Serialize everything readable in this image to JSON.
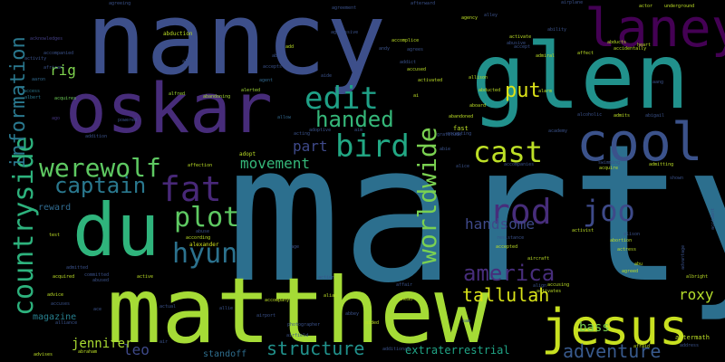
{
  "words": [
    {
      "text": "nancy",
      "color": "#3d4f8a"
    },
    {
      "text": "marty",
      "color": "#2c6f8e"
    },
    {
      "text": "matthew",
      "color": "#a5db36"
    },
    {
      "text": "oskar",
      "color": "#472c7a"
    },
    {
      "text": "glen",
      "color": "#21918c"
    },
    {
      "text": "du",
      "color": "#2fb47c"
    },
    {
      "text": "cool",
      "color": "#3b528b"
    },
    {
      "text": "laney",
      "color": "#440154"
    },
    {
      "text": "jesus",
      "color": "#c8e020"
    },
    {
      "text": "countryside",
      "color": "#2db27d"
    },
    {
      "text": "worldwide",
      "color": "#7ad151"
    },
    {
      "text": "information",
      "color": "#2a788e"
    },
    {
      "text": "werewolf",
      "color": "#5ec962"
    },
    {
      "text": "bird",
      "color": "#22a884"
    },
    {
      "text": "edit",
      "color": "#1fa187"
    },
    {
      "text": "cast",
      "color": "#bddf26"
    },
    {
      "text": "fat",
      "color": "#482878"
    },
    {
      "text": "rod",
      "color": "#472d7b"
    },
    {
      "text": "joo",
      "color": "#3e4a89"
    },
    {
      "text": "hyun",
      "color": "#2c728e"
    },
    {
      "text": "plot",
      "color": "#5ec962"
    },
    {
      "text": "handed",
      "color": "#35b779"
    },
    {
      "text": "captain",
      "color": "#2a788e"
    },
    {
      "text": "america",
      "color": "#472d7b"
    },
    {
      "text": "tallulah",
      "color": "#d8e219"
    },
    {
      "text": "structure",
      "color": "#21918c"
    },
    {
      "text": "adventure",
      "color": "#38598c"
    },
    {
      "text": "put",
      "color": "#dde318"
    },
    {
      "text": "movement",
      "color": "#35b779"
    },
    {
      "text": "handsome",
      "color": "#3e4989"
    },
    {
      "text": "leo",
      "color": "#3e4989"
    },
    {
      "text": "rig",
      "color": "#7fd34e"
    },
    {
      "text": "part",
      "color": "#3e4989"
    },
    {
      "text": "roxy",
      "color": "#b5de2b"
    },
    {
      "text": "jennifer",
      "color": "#aadc32"
    },
    {
      "text": "bass",
      "color": "#7ad151"
    },
    {
      "text": "magazine",
      "color": "#277f8e"
    },
    {
      "text": "extraterrestrial",
      "color": "#20a486"
    },
    {
      "text": "reward",
      "color": "#306a8e"
    },
    {
      "text": "standoff",
      "color": "#2e6e8e"
    },
    {
      "text": "alexander",
      "color": "#d0e11c"
    },
    {
      "text": "adopt",
      "color": "#bddf26"
    },
    {
      "text": "abduction",
      "color": "#bddf26"
    },
    {
      "text": "aftermath",
      "color": "#bddf26"
    },
    {
      "text": "acknowledges",
      "color": "#433e85"
    },
    {
      "text": "accompanied",
      "color": "#3b528b"
    },
    {
      "text": "activity",
      "color": "#3b528b"
    },
    {
      "text": "african",
      "color": "#3b528b"
    },
    {
      "text": "aaron",
      "color": "#31688e"
    },
    {
      "text": "access",
      "color": "#2a788e"
    },
    {
      "text": "albert",
      "color": "#2a788e"
    },
    {
      "text": "acquires",
      "color": "#6ece58"
    },
    {
      "text": "ago",
      "color": "#453581"
    },
    {
      "text": "addition",
      "color": "#3b528b"
    },
    {
      "text": "powered",
      "color": "#3b528b"
    },
    {
      "text": "alien",
      "color": "#3b528b"
    },
    {
      "text": "alfred",
      "color": "#a5db36"
    },
    {
      "text": "abandoning",
      "color": "#a5db36"
    },
    {
      "text": "alerted",
      "color": "#a5db36"
    },
    {
      "text": "agent",
      "color": "#31688e"
    },
    {
      "text": "allow",
      "color": "#31688e"
    },
    {
      "text": "acting",
      "color": "#3b528b"
    },
    {
      "text": "adoptive",
      "color": "#3b528b"
    },
    {
      "text": "aim",
      "color": "#3b528b"
    },
    {
      "text": "affection",
      "color": "#bddf26"
    },
    {
      "text": "abuse",
      "color": "#3b528b"
    },
    {
      "text": "according",
      "color": "#bddf26"
    },
    {
      "text": "test",
      "color": "#bddf26"
    },
    {
      "text": "admitted",
      "color": "#3b528b"
    },
    {
      "text": "acquired",
      "color": "#bddf26"
    },
    {
      "text": "committed",
      "color": "#3b528b"
    },
    {
      "text": "abused",
      "color": "#3b528b"
    },
    {
      "text": "active",
      "color": "#bddf26"
    },
    {
      "text": "advice",
      "color": "#bddf26"
    },
    {
      "text": "accuses",
      "color": "#3b528b"
    },
    {
      "text": "alliance",
      "color": "#3b528b"
    },
    {
      "text": "abraham",
      "color": "#bddf26"
    },
    {
      "text": "advises",
      "color": "#bddf26"
    },
    {
      "text": "air",
      "color": "#3b528b"
    },
    {
      "text": "accompany",
      "color": "#bddf26"
    },
    {
      "text": "action",
      "color": "#3b528b"
    },
    {
      "text": "alias",
      "color": "#bddf26"
    },
    {
      "text": "airport",
      "color": "#3b528b"
    },
    {
      "text": "airfield",
      "color": "#3b528b"
    },
    {
      "text": "photographer",
      "color": "#3b528b"
    },
    {
      "text": "aided",
      "color": "#bddf26"
    },
    {
      "text": "additional",
      "color": "#3b528b"
    },
    {
      "text": "ahead",
      "color": "#bddf26"
    },
    {
      "text": "affair",
      "color": "#3b528b"
    },
    {
      "text": "accepted",
      "color": "#bddf26"
    },
    {
      "text": "aircraft",
      "color": "#bddf26"
    },
    {
      "text": "align",
      "color": "#3b528b"
    },
    {
      "text": "accusing",
      "color": "#bddf26"
    },
    {
      "text": "activates",
      "color": "#bddf26"
    },
    {
      "text": "resistance",
      "color": "#3b528b"
    },
    {
      "text": "activist",
      "color": "#bddf26"
    },
    {
      "text": "alison",
      "color": "#3b528b"
    },
    {
      "text": "abortion",
      "color": "#bddf26"
    },
    {
      "text": "actress",
      "color": "#bddf26"
    },
    {
      "text": "agreed",
      "color": "#bddf26"
    },
    {
      "text": "albright",
      "color": "#bddf26"
    },
    {
      "text": "advantage",
      "color": "#3b528b"
    },
    {
      "text": "accident",
      "color": "#3b528b"
    },
    {
      "text": "afraid",
      "color": "#bddf26"
    },
    {
      "text": "address",
      "color": "#3b528b"
    },
    {
      "text": "admitting",
      "color": "#bddf26"
    },
    {
      "text": "swimming",
      "color": "#3b528b"
    },
    {
      "text": "acquire",
      "color": "#bddf26"
    },
    {
      "text": "shown",
      "color": "#3b528b"
    },
    {
      "text": "admits",
      "color": "#bddf26"
    },
    {
      "text": "abigail",
      "color": "#3b528b"
    },
    {
      "text": "alcoholic",
      "color": "#3b528b"
    },
    {
      "text": "academy",
      "color": "#3b528b"
    },
    {
      "text": "abandoned",
      "color": "#bddf26"
    },
    {
      "text": "aboard",
      "color": "#bddf26"
    },
    {
      "text": "accepting",
      "color": "#3b528b"
    },
    {
      "text": "fast",
      "color": "#bddf26"
    },
    {
      "text": "gratitude",
      "color": "#3b528b"
    },
    {
      "text": "abie",
      "color": "#3b528b"
    },
    {
      "text": "alice",
      "color": "#3b528b"
    },
    {
      "text": "accompanies",
      "color": "#3b528b"
    },
    {
      "text": "abducted",
      "color": "#bddf26"
    },
    {
      "text": "allison",
      "color": "#bddf26"
    },
    {
      "text": "activated",
      "color": "#bddf26"
    },
    {
      "text": "accused",
      "color": "#bddf26"
    },
    {
      "text": "addict",
      "color": "#3b528b"
    },
    {
      "text": "agrees",
      "color": "#3b528b"
    },
    {
      "text": "andy",
      "color": "#3b528b"
    },
    {
      "text": "accomplice",
      "color": "#bddf26"
    },
    {
      "text": "aggressive",
      "color": "#3b528b"
    },
    {
      "text": "agreement",
      "color": "#3b528b"
    },
    {
      "text": "agency",
      "color": "#bddf26"
    },
    {
      "text": "alley",
      "color": "#3b528b"
    },
    {
      "text": "abusive",
      "color": "#3b528b"
    },
    {
      "text": "activate",
      "color": "#bddf26"
    },
    {
      "text": "accept",
      "color": "#3b528b"
    },
    {
      "text": "admiral",
      "color": "#bddf26"
    },
    {
      "text": "affect",
      "color": "#bddf26"
    },
    {
      "text": "abducts",
      "color": "#bddf26"
    },
    {
      "text": "accidentally",
      "color": "#bddf26"
    },
    {
      "text": "heart",
      "color": "#bddf26"
    },
    {
      "text": "actor",
      "color": "#bddf26"
    },
    {
      "text": "underground",
      "color": "#bddf26"
    },
    {
      "text": "airplane",
      "color": "#3b528b"
    },
    {
      "text": "ability",
      "color": "#3b528b"
    },
    {
      "text": "agreeing",
      "color": "#3b528b"
    },
    {
      "text": "afterward",
      "color": "#3b528b"
    },
    {
      "text": "add",
      "color": "#bddf26"
    },
    {
      "text": "abby",
      "color": "#3b528b"
    },
    {
      "text": "accepts",
      "color": "#3b528b"
    },
    {
      "text": "aide",
      "color": "#3b528b"
    },
    {
      "text": "alarm",
      "color": "#bddf26"
    },
    {
      "text": "aang",
      "color": "#3b528b"
    },
    {
      "text": "abu",
      "color": "#bddf26"
    },
    {
      "text": "age",
      "color": "#3b528b"
    },
    {
      "text": "sam",
      "color": "#3b528b"
    },
    {
      "text": "ai",
      "color": "#bddf26"
    },
    {
      "text": "abbey",
      "color": "#3b528b"
    },
    {
      "text": "allie",
      "color": "#3b528b"
    },
    {
      "text": "actual",
      "color": "#3b528b"
    },
    {
      "text": "ace",
      "color": "#3b528b"
    }
  ]
}
